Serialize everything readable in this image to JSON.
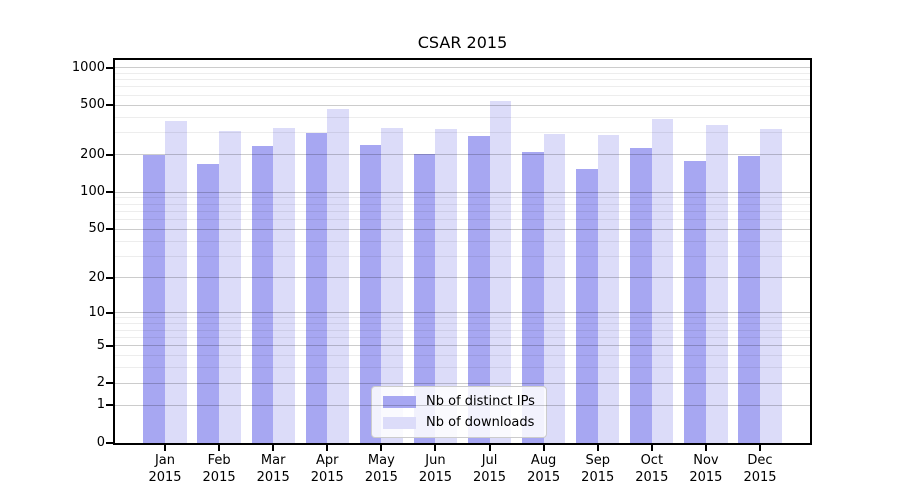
{
  "title": "CSAR 2015",
  "chart_data": {
    "type": "bar",
    "title": "CSAR 2015",
    "categories": [
      "Jan",
      "Feb",
      "Mar",
      "Apr",
      "May",
      "Jun",
      "Jul",
      "Aug",
      "Sep",
      "Oct",
      "Nov",
      "Dec"
    ],
    "category_year": "2015",
    "series": [
      {
        "name": "Nb of distinct IPs",
        "color": "#a7a7f2",
        "values": [
          200,
          170,
          235,
          300,
          240,
          205,
          285,
          210,
          155,
          225,
          180,
          195
        ]
      },
      {
        "name": "Nb of downloads",
        "color": "#dcdcf9",
        "values": [
          375,
          310,
          330,
          465,
          330,
          325,
          545,
          295,
          290,
          385,
          345,
          320
        ]
      }
    ],
    "xlabel": "",
    "ylabel": "",
    "y_scale": "log1p",
    "ylim": [
      0,
      1150
    ],
    "y_ticks": [
      0,
      1,
      2,
      5,
      10,
      20,
      50,
      100,
      200,
      500,
      1000
    ],
    "y_minor_gridlines": [
      3,
      4,
      6,
      7,
      8,
      9,
      30,
      40,
      60,
      70,
      80,
      90,
      300,
      400,
      600,
      700,
      800,
      900
    ],
    "grid": true,
    "legend_position": "lower center"
  }
}
